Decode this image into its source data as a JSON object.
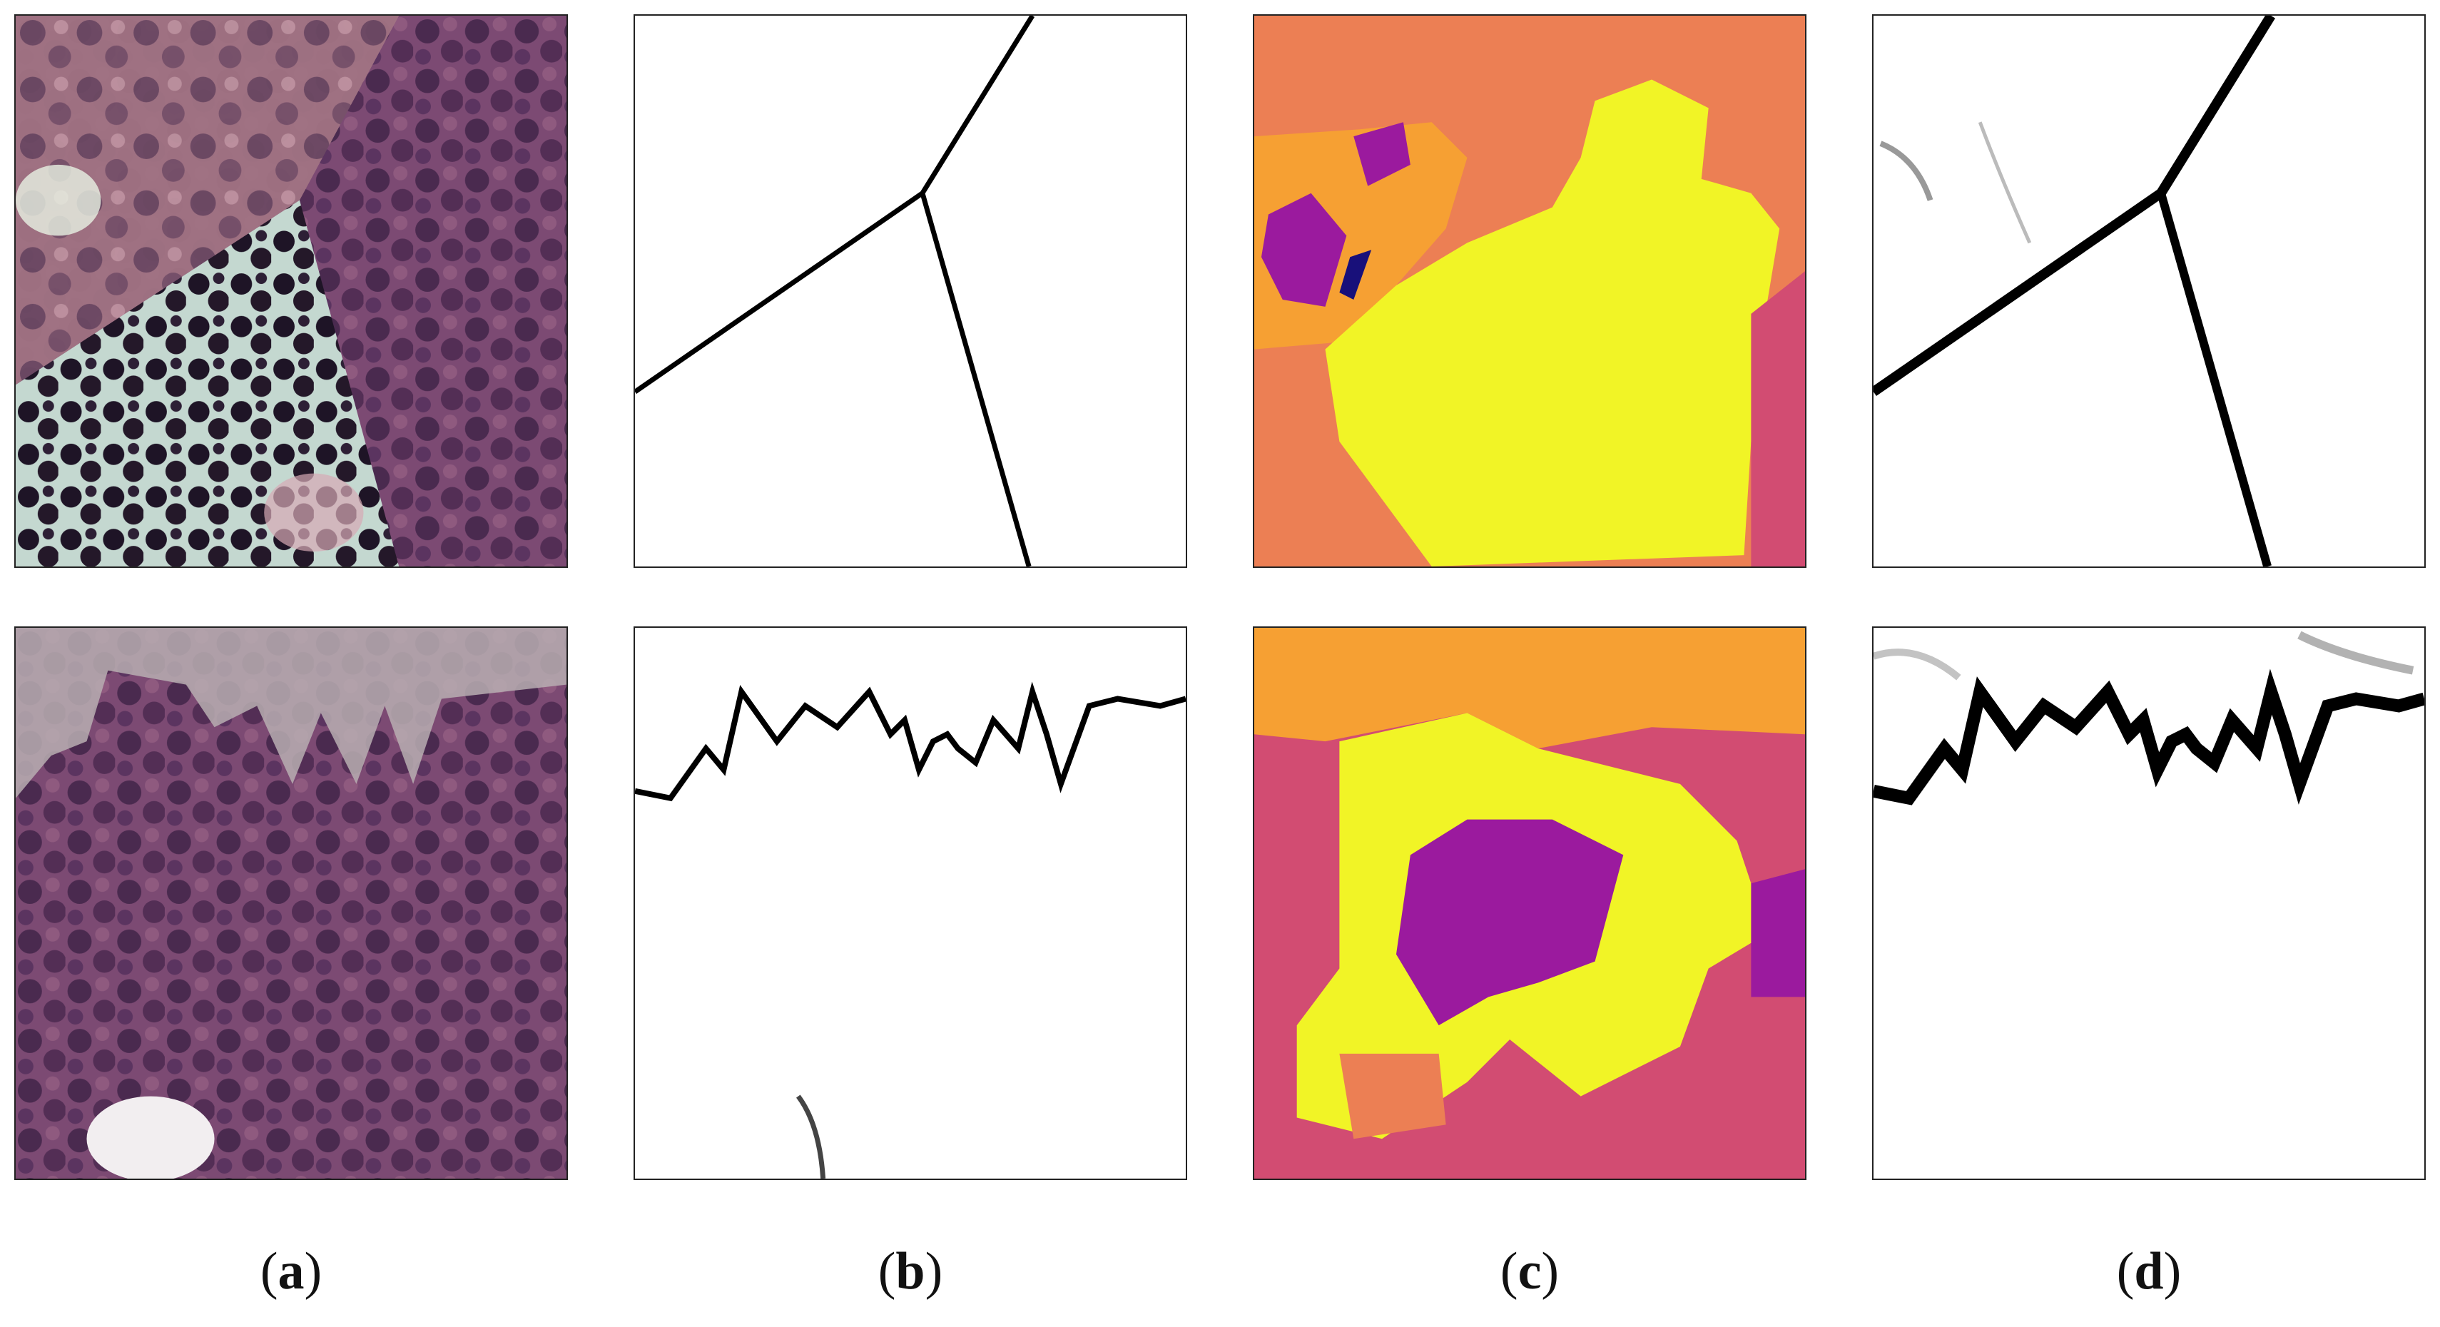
{
  "captions": [
    {
      "open": "(",
      "letter": "a",
      "close": ")"
    },
    {
      "open": "(",
      "letter": "b",
      "close": ")"
    },
    {
      "open": "(",
      "letter": "c",
      "close": ")"
    },
    {
      "open": "(",
      "letter": "d",
      "close": ")"
    }
  ],
  "colors": {
    "tissue_dark": "#3a1f3f",
    "tissue_mid": "#6b3d66",
    "tissue_light": "#b98a9c",
    "seg_orange": "#ec7f54",
    "seg_yellow": "#f1f426",
    "seg_purple": "#9b1a9e",
    "seg_pink": "#d24c72",
    "seg_navy": "#18107a",
    "seg_light_orange": "#f6a033",
    "boundary": "#000000"
  }
}
